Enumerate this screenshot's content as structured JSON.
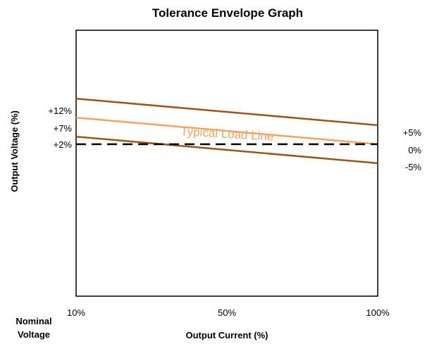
{
  "chart_data": {
    "type": "line",
    "title": "Tolerance Envelope Graph",
    "xlabel": "Output Current (%)",
    "ylabel": "Output Voltage (%)",
    "corner_label": [
      "Nominal",
      "Voltage"
    ],
    "x_ticks": [
      "10%",
      "50%",
      "100%"
    ],
    "xlim": [
      10,
      100
    ],
    "ylim": [
      -40,
      30
    ],
    "grid": false,
    "legend": "none",
    "left_labels": [
      "+12%",
      "+7%",
      "+2%"
    ],
    "right_labels": [
      "+5%",
      "0%",
      "-5%"
    ],
    "annotation": "Typical Load Line",
    "series": [
      {
        "x": [
          10,
          100
        ],
        "y": [
          12,
          5
        ],
        "color": "#9c5519",
        "style": "solid"
      },
      {
        "x": [
          10,
          100
        ],
        "y": [
          7,
          0
        ],
        "color": "#f4a460",
        "style": "solid"
      },
      {
        "x": [
          10,
          100
        ],
        "y": [
          2,
          -5
        ],
        "color": "#9c5519",
        "style": "solid"
      },
      {
        "x": [
          10,
          100
        ],
        "y": [
          0,
          0
        ],
        "color": "#000000",
        "style": "dashed"
      }
    ]
  }
}
